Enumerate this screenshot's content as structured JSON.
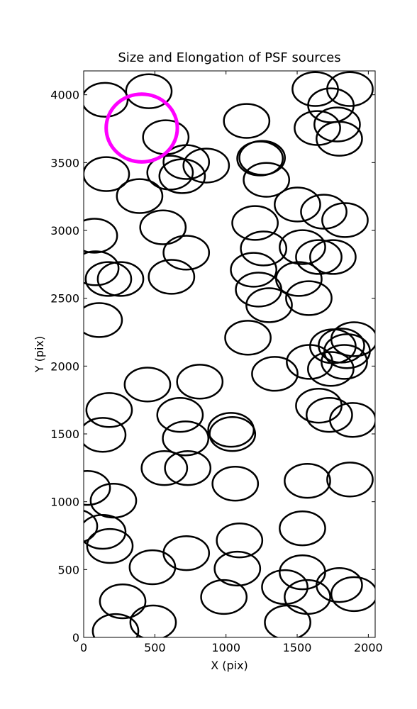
{
  "chart_data": {
    "type": "ellipse",
    "title": "Size and Elongation of PSF sources",
    "x_label": "X (pix)",
    "y_label": "Y (pix)",
    "xlim": [
      0,
      2048
    ],
    "ylim": [
      0,
      4176
    ],
    "xticks": [
      0,
      500,
      1000,
      1500,
      2000
    ],
    "yticks": [
      0,
      500,
      1000,
      1500,
      2000,
      2500,
      3000,
      3500,
      4000
    ],
    "series": [
      {
        "color": "#000000",
        "linewidth": 2.5,
        "width": 320,
        "height": 250,
        "x": [
          149,
          458,
          577,
          1145,
          1627,
          1871,
          1737,
          1642,
          1781,
          1796,
          159,
          607,
          721,
          692,
          861,
          393,
          1254,
          1239,
          1284,
          1502,
          1687,
          1836,
          557,
          75,
          1204,
          1264,
          1537,
          721,
          85,
          174,
          259,
          617,
          1194,
          1652,
          1751,
          1512,
          1229,
          1303,
          1582,
          109,
          1154,
          1343,
          1587,
          1736,
          1751,
          1811,
          1851,
          1900,
          1831,
          448,
          816,
          179,
          134,
          677,
          716,
          1035,
          1045,
          1652,
          1726,
          1891,
          567,
          731,
          25,
          209,
          1065,
          1572,
          1871,
          -65,
          134,
          184,
          721,
          1095,
          1537,
          483,
          1080,
          1537,
          1413,
          1572,
          1796,
          1900,
          274,
          985,
          488,
          224,
          1433
        ],
        "y": [
          3963,
          4026,
          3687,
          3807,
          4042,
          4042,
          3922,
          3755,
          3781,
          3676,
          3415,
          3426,
          3504,
          3400,
          3478,
          3253,
          3535,
          3530,
          3373,
          3191,
          3138,
          3076,
          3023,
          2961,
          3055,
          2867,
          2877,
          2836,
          2721,
          2642,
          2642,
          2658,
          2710,
          2804,
          2804,
          2642,
          2564,
          2449,
          2501,
          2339,
          2209,
          1943,
          2031,
          1979,
          2146,
          2151,
          2110,
          2198,
          2031,
          1864,
          1885,
          1676,
          1493,
          1640,
          1467,
          1530,
          1499,
          1708,
          1640,
          1603,
          1248,
          1248,
          1102,
          1008,
          1133,
          1154,
          1164,
          820,
          778,
          674,
          621,
          715,
          804,
          517,
          507,
          480,
          371,
          298,
          386,
          319,
          266,
          298,
          110,
          47,
          110
        ]
      },
      {
        "color": "#ff00ff",
        "linewidth": 5,
        "width": 500,
        "height": 500,
        "x": [
          408
        ],
        "y": [
          3755
        ]
      }
    ]
  }
}
